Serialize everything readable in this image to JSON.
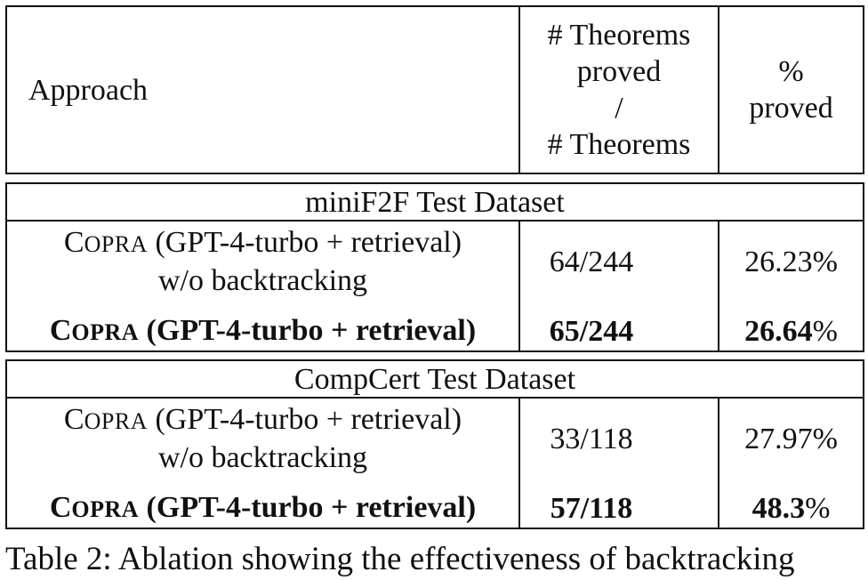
{
  "table": {
    "header": {
      "approach": "Approach",
      "theorems_lines": [
        "# Theorems",
        "proved",
        "/",
        "# Theorems"
      ],
      "percent_lines": [
        "%",
        "proved"
      ]
    },
    "sections": [
      {
        "title": "miniF2F Test Dataset",
        "rows": [
          {
            "method_cap": "C",
            "method_sc": "OPRA",
            "method_rest": " (GPT-4-turbo + retrieval)",
            "method_line2": "w/o backtracking",
            "proved": "64/244",
            "percent": "26.23%"
          },
          {
            "method_cap": "C",
            "method_sc": "OPRA",
            "method_rest": " (GPT-4-turbo + retrieval)",
            "proved": "65/244",
            "percent_num": "26.64",
            "percent_sign": "%"
          }
        ]
      },
      {
        "title": "CompCert Test Dataset",
        "rows": [
          {
            "method_cap": "C",
            "method_sc": "OPRA",
            "method_rest": " (GPT-4-turbo + retrieval)",
            "method_line2": "w/o backtracking",
            "proved": "33/118",
            "percent": "27.97%"
          },
          {
            "method_cap": "C",
            "method_sc": "OPRA",
            "method_rest": " (GPT-4-turbo + retrieval)",
            "proved": "57/118",
            "percent_num": "48.3",
            "percent_sign": "%"
          }
        ]
      }
    ]
  },
  "caption": "Table 2: Ablation showing the effectiveness of backtracking"
}
